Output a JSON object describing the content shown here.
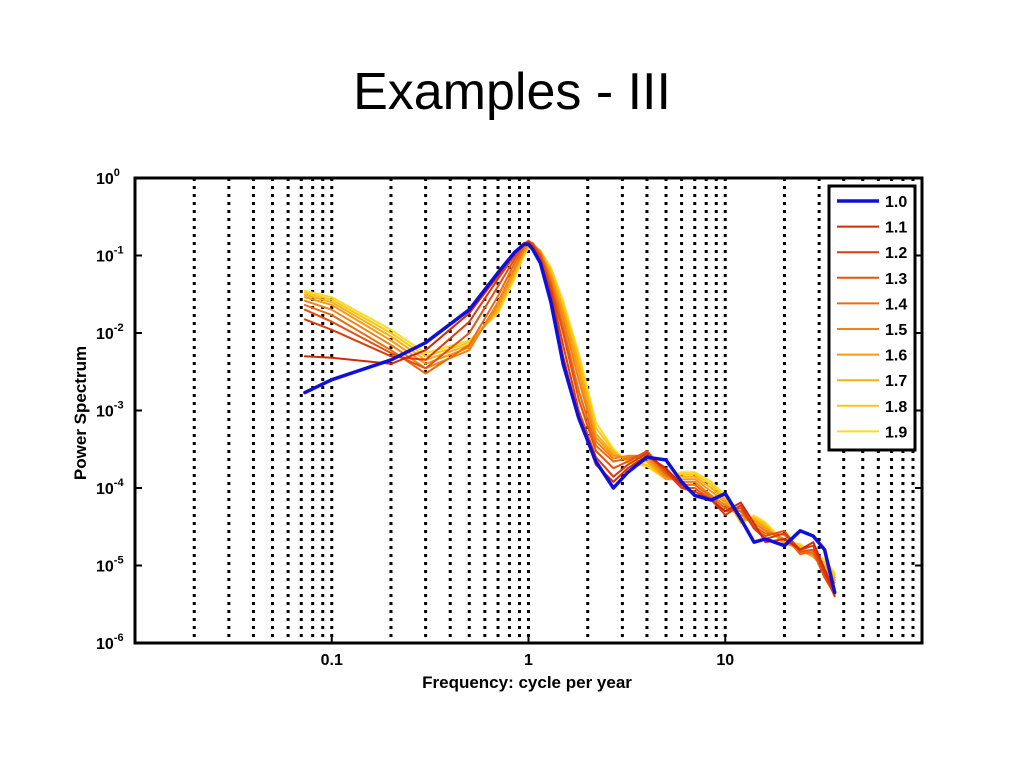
{
  "slide": {
    "title": "Examples  - III"
  },
  "chart_data": {
    "type": "line",
    "title": "",
    "xlabel": "Frequency: cycle per year",
    "ylabel": "Power Spectrum",
    "xscale": "log",
    "yscale": "log",
    "xlim": [
      0.01,
      100
    ],
    "ylim": [
      1e-06,
      1
    ],
    "x_ticks": [
      {
        "value": 0.1,
        "label": "0.1"
      },
      {
        "value": 1,
        "label": "1"
      },
      {
        "value": 10,
        "label": "10"
      }
    ],
    "y_ticks": [
      {
        "value": 1,
        "base": "10",
        "exp": "0"
      },
      {
        "value": 0.1,
        "base": "10",
        "exp": "-1"
      },
      {
        "value": 0.01,
        "base": "10",
        "exp": "-2"
      },
      {
        "value": 0.001,
        "base": "10",
        "exp": "-3"
      },
      {
        "value": 0.0001,
        "base": "10",
        "exp": "-4"
      },
      {
        "value": 1e-05,
        "base": "10",
        "exp": "-5"
      },
      {
        "value": 1e-06,
        "base": "10",
        "exp": "-6"
      }
    ],
    "grid": "x-major-and-minor-dotted",
    "legend_position": "top-right",
    "x": [
      0.073,
      0.1,
      0.2,
      0.3,
      0.5,
      0.7,
      0.85,
      0.95,
      1.0,
      1.05,
      1.15,
      1.3,
      1.5,
      1.8,
      2.2,
      2.7,
      3.2,
      4.0,
      5.0,
      6.0,
      7.0,
      8.5,
      10,
      12,
      14,
      16,
      20,
      24,
      28,
      32,
      36
    ],
    "series": [
      {
        "name": "1.0",
        "color": "#1010d8",
        "width": 3.5,
        "values": [
          0.0017,
          0.0025,
          0.0045,
          0.0075,
          0.02,
          0.06,
          0.11,
          0.14,
          0.14,
          0.12,
          0.08,
          0.025,
          0.004,
          0.0008,
          0.00022,
          0.0001,
          0.00016,
          0.00025,
          0.00023,
          0.00012,
          8e-05,
          7e-05,
          8.5e-05,
          4e-05,
          2e-05,
          2.2e-05,
          1.8e-05,
          2.8e-05,
          2.4e-05,
          1.6e-05,
          4.5e-06
        ]
      },
      {
        "name": "1.1",
        "color": "#d22a0a",
        "width": 2,
        "values": [
          0.005,
          0.0048,
          0.004,
          0.006,
          0.018,
          0.055,
          0.11,
          0.145,
          0.145,
          0.13,
          0.085,
          0.03,
          0.005,
          0.0008,
          0.0002,
          0.00012,
          0.00018,
          0.00026,
          0.00018,
          0.00011,
          8e-05,
          7e-05,
          5e-05,
          6.5e-05,
          3.5e-05,
          2e-05,
          2.2e-05,
          1.6e-05,
          2e-05,
          9e-06,
          4.5e-06
        ]
      },
      {
        "name": "1.2",
        "color": "#dc3c0c",
        "width": 2,
        "values": [
          0.015,
          0.011,
          0.005,
          0.0045,
          0.014,
          0.05,
          0.1,
          0.145,
          0.15,
          0.135,
          0.09,
          0.035,
          0.007,
          0.001,
          0.00025,
          0.00014,
          0.0002,
          0.00028,
          0.00017,
          0.0001,
          9e-05,
          7e-05,
          4.5e-05,
          6e-05,
          3e-05,
          2.2e-05,
          2.6e-05,
          1.6e-05,
          1.8e-05,
          8e-06,
          4e-06
        ]
      },
      {
        "name": "1.3",
        "color": "#e4520e",
        "width": 2,
        "values": [
          0.02,
          0.014,
          0.0055,
          0.0035,
          0.01,
          0.04,
          0.09,
          0.14,
          0.155,
          0.14,
          0.1,
          0.04,
          0.01,
          0.0014,
          0.0003,
          0.00018,
          0.00022,
          0.0003,
          0.00016,
          0.0001,
          0.0001,
          7e-05,
          5e-05,
          5.5e-05,
          3e-05,
          2.4e-05,
          2.8e-05,
          1.5e-05,
          1.6e-05,
          7e-06,
          4.2e-06
        ]
      },
      {
        "name": "1.4",
        "color": "#ec6a10",
        "width": 2,
        "values": [
          0.023,
          0.017,
          0.006,
          0.003,
          0.007,
          0.03,
          0.08,
          0.13,
          0.15,
          0.145,
          0.105,
          0.045,
          0.012,
          0.0018,
          0.00035,
          0.00022,
          0.00024,
          0.00028,
          0.00015,
          0.00011,
          0.00011,
          7.5e-05,
          5.5e-05,
          5e-05,
          3.2e-05,
          2.6e-05,
          2.5e-05,
          1.4e-05,
          1.5e-05,
          7e-06,
          5e-06
        ]
      },
      {
        "name": "1.5",
        "color": "#f28212",
        "width": 2,
        "values": [
          0.026,
          0.02,
          0.007,
          0.0035,
          0.006,
          0.025,
          0.07,
          0.12,
          0.145,
          0.14,
          0.11,
          0.05,
          0.015,
          0.0025,
          0.0004,
          0.00024,
          0.00026,
          0.00026,
          0.00014,
          0.00012,
          0.00012,
          8e-05,
          6e-05,
          4.5e-05,
          3.5e-05,
          2.8e-05,
          2.2e-05,
          1.5e-05,
          1.4e-05,
          8e-06,
          6e-06
        ]
      },
      {
        "name": "1.6",
        "color": "#f69a14",
        "width": 2,
        "values": [
          0.029,
          0.023,
          0.008,
          0.004,
          0.0065,
          0.022,
          0.065,
          0.115,
          0.14,
          0.14,
          0.11,
          0.055,
          0.018,
          0.0032,
          0.00045,
          0.00026,
          0.00025,
          0.00024,
          0.00013,
          0.00013,
          0.00013,
          9e-05,
          6.5e-05,
          4e-05,
          3.8e-05,
          3e-05,
          2e-05,
          1.6e-05,
          1.3e-05,
          9e-06,
          6.5e-06
        ]
      },
      {
        "name": "1.7",
        "color": "#f8b016",
        "width": 2,
        "values": [
          0.031,
          0.025,
          0.009,
          0.0045,
          0.007,
          0.02,
          0.06,
          0.11,
          0.135,
          0.14,
          0.115,
          0.06,
          0.02,
          0.004,
          0.0005,
          0.00028,
          0.00023,
          0.00022,
          0.00013,
          0.00014,
          0.00014,
          0.0001,
          7e-05,
          3.8e-05,
          4e-05,
          3.2e-05,
          1.9e-05,
          1.7e-05,
          1.3e-05,
          1e-05,
          7e-06
        ]
      },
      {
        "name": "1.8",
        "color": "#fac61a",
        "width": 2,
        "values": [
          0.033,
          0.027,
          0.01,
          0.005,
          0.0075,
          0.019,
          0.055,
          0.105,
          0.13,
          0.135,
          0.115,
          0.065,
          0.023,
          0.0048,
          0.0006,
          0.0003,
          0.00022,
          0.0002,
          0.00013,
          0.00015,
          0.00015,
          0.00011,
          7.5e-05,
          3.6e-05,
          4.2e-05,
          3.4e-05,
          1.9e-05,
          1.8e-05,
          1.3e-05,
          1.1e-05,
          7.5e-06
        ]
      },
      {
        "name": "1.9",
        "color": "#fcdc22",
        "width": 2,
        "values": [
          0.035,
          0.029,
          0.011,
          0.0055,
          0.008,
          0.018,
          0.05,
          0.1,
          0.125,
          0.13,
          0.115,
          0.07,
          0.026,
          0.0055,
          0.0007,
          0.00032,
          0.00021,
          0.00019,
          0.00013,
          0.00016,
          0.00016,
          0.00012,
          8e-05,
          3.5e-05,
          4.4e-05,
          3.6e-05,
          2e-05,
          1.9e-05,
          1.4e-05,
          1.2e-05,
          8e-06
        ]
      }
    ]
  }
}
